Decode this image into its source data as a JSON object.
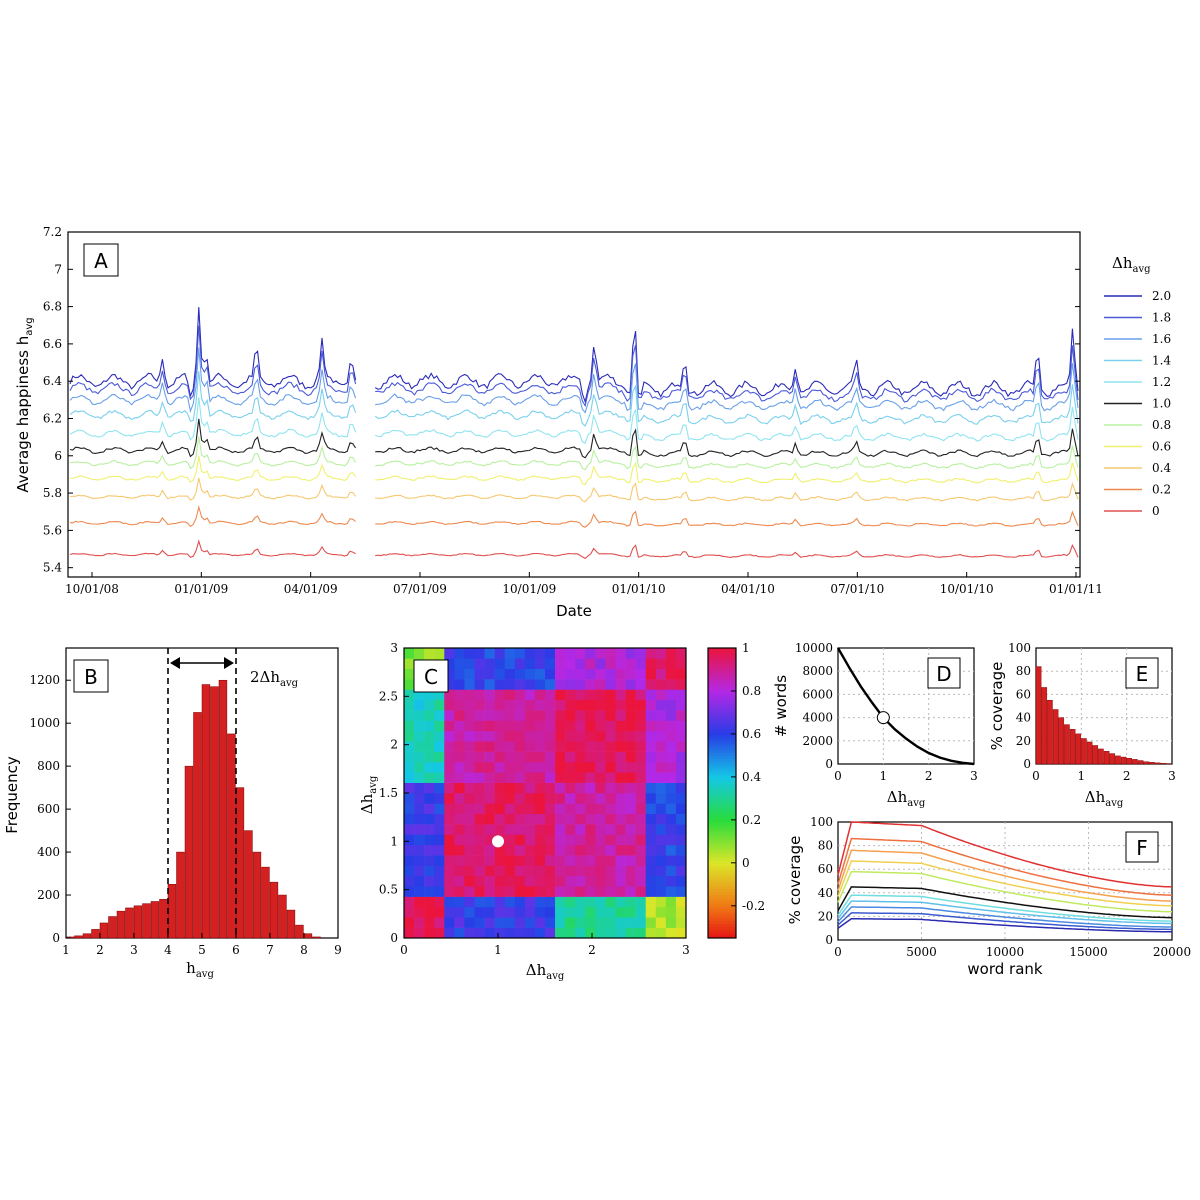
{
  "chart_data": [
    {
      "panel": "A",
      "type": "line",
      "xlabel": "Date",
      "ylabel": "Average happiness h",
      "ylabel_sub": "avg",
      "ylim": [
        5.35,
        7.2
      ],
      "yticks": [
        "5.4",
        "5.6",
        "5.8",
        "6",
        "6.2",
        "6.4",
        "6.6",
        "6.8",
        "7",
        "7.2"
      ],
      "xticks": [
        "10/01/08",
        "01/01/09",
        "04/01/09",
        "07/01/09",
        "10/01/09",
        "01/01/10",
        "04/01/10",
        "07/01/10",
        "10/01/10",
        "01/01/11"
      ],
      "legend_title": "Δh",
      "legend_title_sub": "avg",
      "legend_placement": "right",
      "series": [
        {
          "name": "2.0",
          "base": 6.4,
          "amp": 1.0,
          "color": "#2a2ab8"
        },
        {
          "name": "1.8",
          "base": 6.36,
          "amp": 0.85,
          "color": "#4a5ad8"
        },
        {
          "name": "1.6",
          "base": 6.3,
          "amp": 0.7,
          "color": "#6aa0e8"
        },
        {
          "name": "1.4",
          "base": 6.22,
          "amp": 0.6,
          "color": "#7ad0ee"
        },
        {
          "name": "1.2",
          "base": 6.12,
          "amp": 0.5,
          "color": "#90e4f0"
        },
        {
          "name": "1.0",
          "base": 6.03,
          "amp": 0.42,
          "color": "#222222"
        },
        {
          "name": "0.8",
          "base": 5.96,
          "amp": 0.35,
          "color": "#b8f0a0"
        },
        {
          "name": "0.6",
          "base": 5.88,
          "amp": 0.3,
          "color": "#f0f070"
        },
        {
          "name": "0.4",
          "base": 5.78,
          "amp": 0.26,
          "color": "#f6c870"
        },
        {
          "name": "0.2",
          "base": 5.64,
          "amp": 0.22,
          "color": "#ee8a50"
        },
        {
          "name": "0",
          "base": 5.47,
          "amp": 0.18,
          "color": "#e05050"
        }
      ]
    },
    {
      "panel": "B",
      "type": "bar",
      "xlabel": "h",
      "xlabel_sub": "avg",
      "ylabel": "Frequency",
      "xlim": [
        1,
        9
      ],
      "ylim": [
        0,
        1350
      ],
      "xticks": [
        "1",
        "2",
        "3",
        "4",
        "5",
        "6",
        "7",
        "8",
        "9"
      ],
      "yticks": [
        "0",
        "200",
        "400",
        "600",
        "800",
        "1000",
        "1200"
      ],
      "annotation": "2Δh",
      "annotation_sub": "avg",
      "bin_width": 0.25,
      "bin_start": 1.0,
      "values": [
        5,
        10,
        20,
        40,
        70,
        100,
        125,
        140,
        150,
        160,
        170,
        180,
        250,
        400,
        800,
        1050,
        1180,
        1170,
        1200,
        950,
        700,
        500,
        400,
        330,
        260,
        200,
        130,
        60,
        20,
        5
      ]
    },
    {
      "panel": "C",
      "type": "heatmap",
      "xlabel": "Δh",
      "xlabel_sub": "avg",
      "ylabel": "Δh",
      "ylabel_sub": "avg",
      "xlim": [
        0,
        3
      ],
      "ylim": [
        0,
        3
      ],
      "xticks": [
        "0",
        "1",
        "2",
        "3"
      ],
      "yticks": [
        "0",
        "0.5",
        "1",
        "1.5",
        "2",
        "2.5",
        "3"
      ],
      "colorbar_ticks": [
        "-0.2",
        "0",
        "0.2",
        "0.4",
        "0.6",
        "0.8",
        "1"
      ],
      "colorbar_range": [
        -0.35,
        1
      ],
      "marker": [
        1.0,
        1.0
      ]
    },
    {
      "panel": "D",
      "type": "line",
      "xlabel": "Δh",
      "xlabel_sub": "avg",
      "ylabel": "# words",
      "xlim": [
        0,
        3
      ],
      "ylim": [
        0,
        10000
      ],
      "xticks": [
        "0",
        "1",
        "2",
        "3"
      ],
      "yticks": [
        "0",
        "2000",
        "4000",
        "6000",
        "8000",
        "10000"
      ],
      "x": [
        0,
        0.25,
        0.5,
        0.75,
        1.0,
        1.25,
        1.5,
        1.75,
        2.0,
        2.25,
        2.5,
        2.75,
        3.0
      ],
      "y": [
        10000,
        8300,
        6700,
        5300,
        4000,
        3000,
        2200,
        1500,
        950,
        550,
        280,
        100,
        0
      ],
      "marker": [
        1.0,
        4000
      ]
    },
    {
      "panel": "E",
      "type": "bar",
      "xlabel": "Δh",
      "xlabel_sub": "avg",
      "ylabel": "% coverage",
      "xlim": [
        0,
        3
      ],
      "ylim": [
        0,
        100
      ],
      "xticks": [
        "0",
        "1",
        "2",
        "3"
      ],
      "yticks": [
        "0",
        "20",
        "40",
        "60",
        "80",
        "100"
      ],
      "bin_width": 0.125,
      "values": [
        84,
        66,
        55,
        47,
        40,
        34,
        30,
        26,
        22,
        19,
        16,
        13,
        11,
        9,
        7,
        6,
        5,
        4,
        3,
        2,
        1.5,
        1,
        0.6,
        0.3
      ]
    },
    {
      "panel": "F",
      "type": "line",
      "xlabel": "word rank",
      "ylabel": "% coverage",
      "xlim": [
        0,
        20000
      ],
      "ylim": [
        0,
        100
      ],
      "xticks": [
        "0",
        "5000",
        "10000",
        "15000",
        "20000"
      ],
      "yticks": [
        "0",
        "20",
        "40",
        "60",
        "80",
        "100"
      ],
      "series": [
        {
          "name": "0",
          "plateau": 100,
          "end": 45,
          "color": "#e03030"
        },
        {
          "name": "0.2",
          "plateau": 86,
          "end": 38,
          "color": "#ee7040"
        },
        {
          "name": "0.4",
          "plateau": 76,
          "end": 33,
          "color": "#f6a050"
        },
        {
          "name": "0.6",
          "plateau": 67,
          "end": 29,
          "color": "#f0d050"
        },
        {
          "name": "0.8",
          "plateau": 58,
          "end": 24,
          "color": "#c0ea60"
        },
        {
          "name": "1.0",
          "plateau": 45,
          "end": 19,
          "color": "#111111"
        },
        {
          "name": "1.2",
          "plateau": 38,
          "end": 16,
          "color": "#70dde0"
        },
        {
          "name": "1.4",
          "plateau": 33,
          "end": 14,
          "color": "#60c0ea"
        },
        {
          "name": "1.6",
          "plateau": 28,
          "end": 11,
          "color": "#4a8ae0"
        },
        {
          "name": "1.8",
          "plateau": 23,
          "end": 9,
          "color": "#3a5ad0"
        },
        {
          "name": "2.0",
          "plateau": 18,
          "end": 7,
          "color": "#2a2ab0"
        }
      ]
    }
  ],
  "panel_labels": {
    "a": "A",
    "b": "B",
    "c": "C",
    "d": "D",
    "e": "E",
    "f": "F"
  }
}
